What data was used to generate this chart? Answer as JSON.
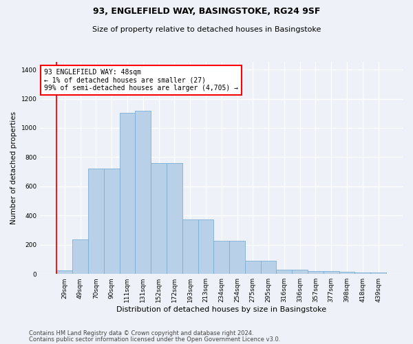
{
  "title1": "93, ENGLEFIELD WAY, BASINGSTOKE, RG24 9SF",
  "title2": "Size of property relative to detached houses in Basingstoke",
  "xlabel": "Distribution of detached houses by size in Basingstoke",
  "ylabel": "Number of detached properties",
  "categories": [
    "29sqm",
    "49sqm",
    "70sqm",
    "90sqm",
    "111sqm",
    "131sqm",
    "152sqm",
    "172sqm",
    "193sqm",
    "213sqm",
    "234sqm",
    "254sqm",
    "275sqm",
    "295sqm",
    "316sqm",
    "336sqm",
    "357sqm",
    "377sqm",
    "398sqm",
    "418sqm",
    "439sqm"
  ],
  "values": [
    25,
    235,
    720,
    720,
    1105,
    1120,
    760,
    760,
    375,
    375,
    225,
    225,
    90,
    90,
    30,
    30,
    20,
    20,
    15,
    10,
    10
  ],
  "bar_color": "#b8d0e8",
  "bar_edge_color": "#7aafd4",
  "vline_color": "red",
  "vline_x_index": 0,
  "annotation_text": "93 ENGLEFIELD WAY: 48sqm\n← 1% of detached houses are smaller (27)\n99% of semi-detached houses are larger (4,705) →",
  "annotation_box_color": "white",
  "annotation_box_edge_color": "red",
  "ylim": [
    0,
    1450
  ],
  "yticks": [
    0,
    200,
    400,
    600,
    800,
    1000,
    1200,
    1400
  ],
  "footer_line1": "Contains HM Land Registry data © Crown copyright and database right 2024.",
  "footer_line2": "Contains public sector information licensed under the Open Government Licence v3.0.",
  "bg_color": "#eef2f8",
  "title1_fontsize": 9,
  "title2_fontsize": 8,
  "ylabel_fontsize": 7.5,
  "xlabel_fontsize": 8,
  "tick_fontsize": 6.5,
  "footer_fontsize": 6
}
